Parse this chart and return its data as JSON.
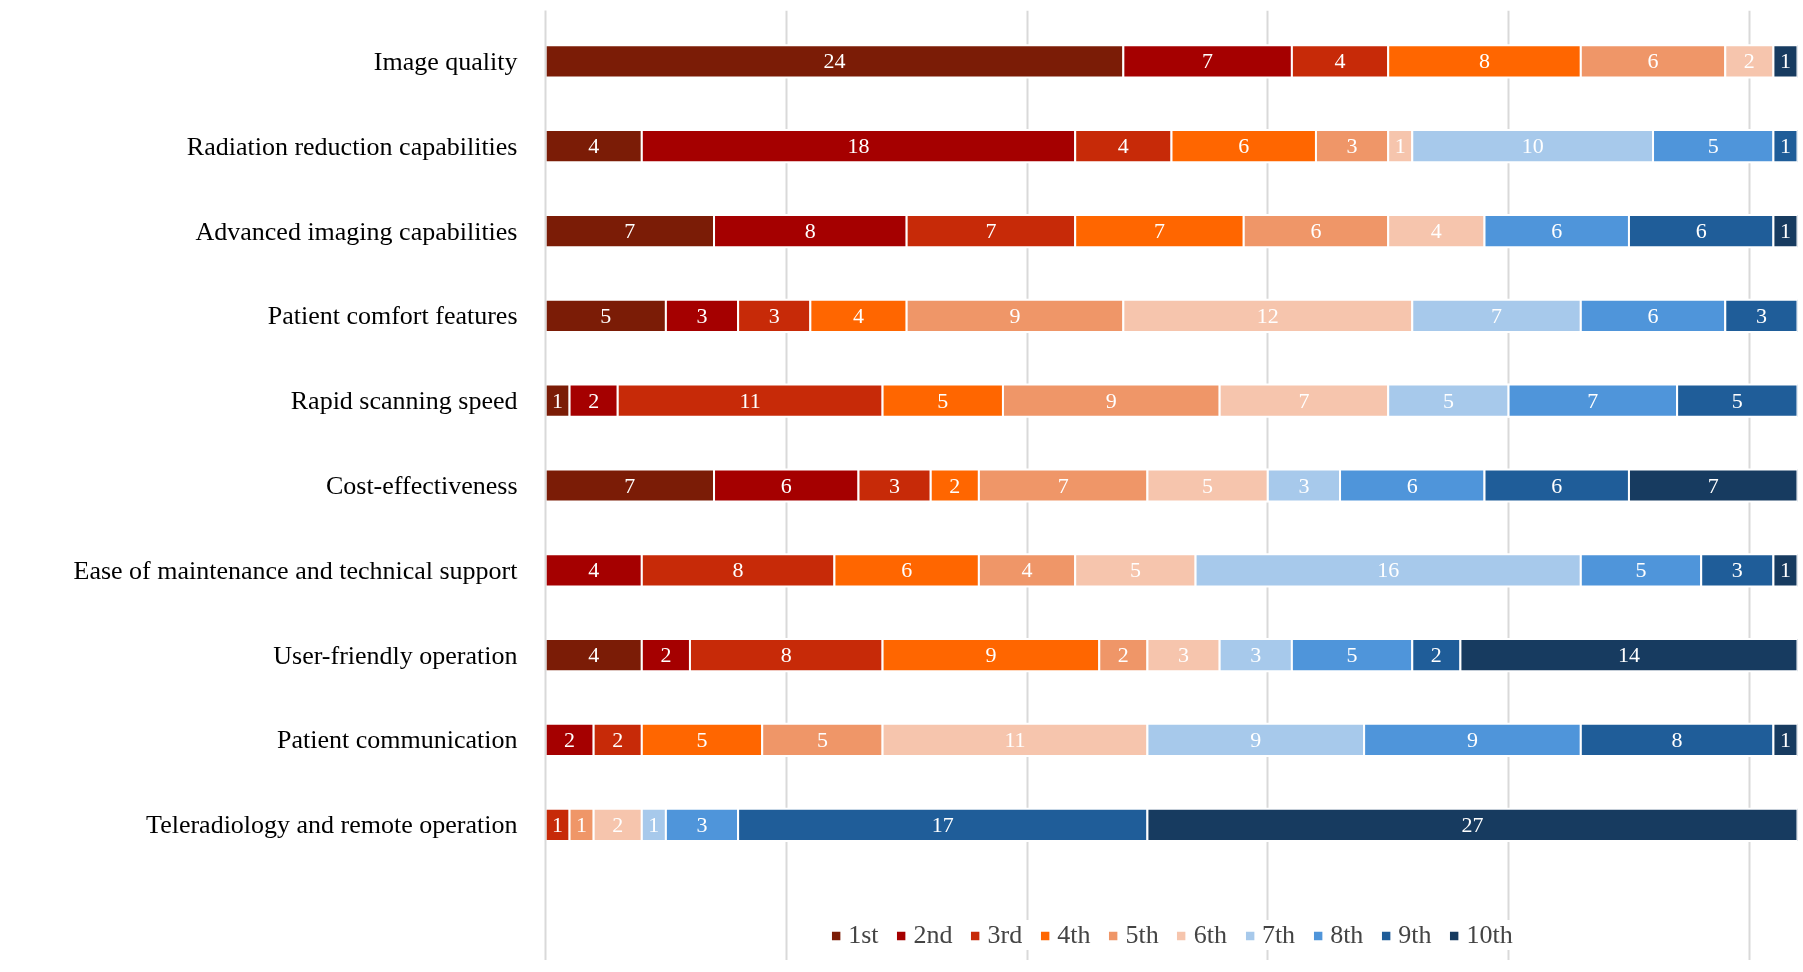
{
  "chart_data": {
    "type": "bar",
    "orientation": "horizontal",
    "stacked": true,
    "data_labels": true,
    "grid": "x",
    "legend": "bottom",
    "tick_labels": "y",
    "categories": [
      "Image quality",
      "Radiation reduction capabilities",
      "Advanced imaging capabilities",
      "Patient comfort features",
      "Rapid scanning speed",
      "Cost-effectiveness",
      "Ease of maintenance and technical support",
      "User-friendly operation",
      "Patient communication",
      "Teleradiology and remote operation"
    ],
    "xlim": [
      0,
      52
    ],
    "xticks": [
      {
        "value": 0,
        "label": null
      },
      {
        "value": 10,
        "label": null
      },
      {
        "value": 20,
        "label": null
      },
      {
        "value": 30,
        "label": null
      },
      {
        "value": 40,
        "label": null
      },
      {
        "value": 50,
        "label": null
      }
    ],
    "series": [
      {
        "name": "1st",
        "color": "#7b1c06",
        "values": [
          24,
          4,
          7,
          5,
          1,
          7,
          null,
          4,
          null,
          null
        ]
      },
      {
        "name": "2nd",
        "color": "#a50000",
        "values": [
          7,
          18,
          8,
          3,
          2,
          6,
          4,
          2,
          2,
          null
        ]
      },
      {
        "name": "3rd",
        "color": "#c72a08",
        "values": [
          4,
          4,
          7,
          3,
          11,
          3,
          8,
          8,
          2,
          1
        ]
      },
      {
        "name": "4th",
        "color": "#ff6600",
        "values": [
          8,
          6,
          7,
          4,
          5,
          2,
          6,
          9,
          5,
          null
        ]
      },
      {
        "name": "5th",
        "color": "#ef9668",
        "values": [
          6,
          3,
          6,
          9,
          9,
          7,
          4,
          2,
          5,
          1
        ]
      },
      {
        "name": "6th",
        "color": "#f6c5ad",
        "values": [
          2,
          1,
          4,
          12,
          7,
          5,
          5,
          3,
          11,
          2
        ]
      },
      {
        "name": "7th",
        "color": "#a7c9eb",
        "values": [
          null,
          10,
          null,
          7,
          5,
          3,
          16,
          3,
          9,
          1
        ]
      },
      {
        "name": "8th",
        "color": "#4f95da",
        "values": [
          null,
          5,
          6,
          6,
          7,
          6,
          5,
          5,
          9,
          3
        ]
      },
      {
        "name": "9th",
        "color": "#1f5d99",
        "values": [
          null,
          1,
          6,
          3,
          5,
          6,
          3,
          2,
          8,
          17
        ]
      },
      {
        "name": "10th",
        "color": "#173b60",
        "values": [
          1,
          null,
          1,
          null,
          null,
          7,
          1,
          14,
          1,
          27
        ]
      }
    ]
  }
}
